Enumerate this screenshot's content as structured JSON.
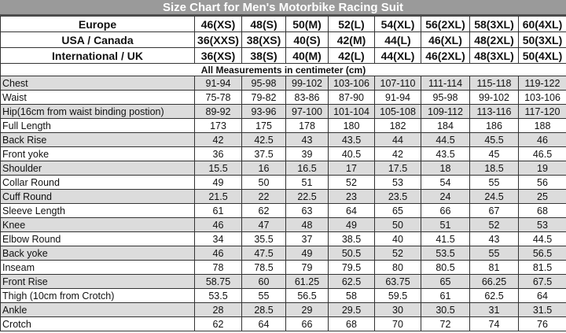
{
  "title": "Size Chart for Men's Motorbike Racing Suit",
  "size_rows": [
    {
      "label": "Europe",
      "values": [
        "46(XS)",
        "48(S)",
        "50(M)",
        "52(L)",
        "54(XL)",
        "56(2XL)",
        "58(3XL)",
        "60(4XL)"
      ]
    },
    {
      "label": "USA / Canada",
      "values": [
        "36(XXS)",
        "38(XS)",
        "40(S)",
        "42(M)",
        "44(L)",
        "46(XL)",
        "48(2XL)",
        "50(3XL)"
      ]
    },
    {
      "label": "International / UK",
      "values": [
        "36(XS)",
        "38(S)",
        "40(M)",
        "42(L)",
        "44(XL)",
        "46(2XL)",
        "48(3XL)",
        "50(4XL)"
      ]
    }
  ],
  "units_note": "All Measurements in centimeter (cm)",
  "measurements": [
    {
      "label": "Chest",
      "values": [
        "91-94",
        "95-98",
        "99-102",
        "103-106",
        "107-110",
        "111-114",
        "115-118",
        "119-122"
      ]
    },
    {
      "label": "Waist",
      "values": [
        "75-78",
        "79-82",
        "83-86",
        "87-90",
        "91-94",
        "95-98",
        "99-102",
        "103-106"
      ]
    },
    {
      "label": "Hip(16cm from waist binding postion)",
      "values": [
        "89-92",
        "93-96",
        "97-100",
        "101-104",
        "105-108",
        "109-112",
        "113-116",
        "117-120"
      ]
    },
    {
      "label": "Full Length",
      "values": [
        "173",
        "175",
        "178",
        "180",
        "182",
        "184",
        "186",
        "188"
      ]
    },
    {
      "label": "Back Rise",
      "values": [
        "42",
        "42.5",
        "43",
        "43.5",
        "44",
        "44.5",
        "45.5",
        "46"
      ]
    },
    {
      "label": "Front yoke",
      "values": [
        "36",
        "37.5",
        "39",
        "40.5",
        "42",
        "43.5",
        "45",
        "46.5"
      ]
    },
    {
      "label": "Shoulder",
      "values": [
        "15.5",
        "16",
        "16.5",
        "17",
        "17.5",
        "18",
        "18.5",
        "19"
      ]
    },
    {
      "label": "Collar Round",
      "values": [
        "49",
        "50",
        "51",
        "52",
        "53",
        "54",
        "55",
        "56"
      ]
    },
    {
      "label": "Cuff Round",
      "values": [
        "21.5",
        "22",
        "22.5",
        "23",
        "23.5",
        "24",
        "24.5",
        "25"
      ]
    },
    {
      "label": "Sleeve Length",
      "values": [
        "61",
        "62",
        "63",
        "64",
        "65",
        "66",
        "67",
        "68"
      ]
    },
    {
      "label": "Knee",
      "values": [
        "46",
        "47",
        "48",
        "49",
        "50",
        "51",
        "52",
        "53"
      ]
    },
    {
      "label": "Elbow Round",
      "values": [
        "34",
        "35.5",
        "37",
        "38.5",
        "40",
        "41.5",
        "43",
        "44.5"
      ]
    },
    {
      "label": "Back yoke",
      "values": [
        "46",
        "47.5",
        "49",
        "50.5",
        "52",
        "53.5",
        "55",
        "56.5"
      ]
    },
    {
      "label": "Inseam",
      "values": [
        "78",
        "78.5",
        "79",
        "79.5",
        "80",
        "80.5",
        "81",
        "81.5"
      ]
    },
    {
      "label": "Front Rise",
      "values": [
        "58.75",
        "60",
        "61.25",
        "62.5",
        "63.75",
        "65",
        "66.25",
        "67.5"
      ]
    },
    {
      "label": "Thigh (10cm from Crotch)",
      "values": [
        "53.5",
        "55",
        "56.5",
        "58",
        "59.5",
        "61",
        "62.5",
        "64"
      ]
    },
    {
      "label": "Ankle",
      "values": [
        "28",
        "28.5",
        "29",
        "29.5",
        "30",
        "30.5",
        "31",
        "31.5"
      ]
    },
    {
      "label": "Crotch",
      "values": [
        "62",
        "64",
        "66",
        "68",
        "70",
        "72",
        "74",
        "76"
      ]
    }
  ],
  "colors": {
    "title_bar": "#9a9a9a",
    "stripe": "#dcdcdc"
  }
}
